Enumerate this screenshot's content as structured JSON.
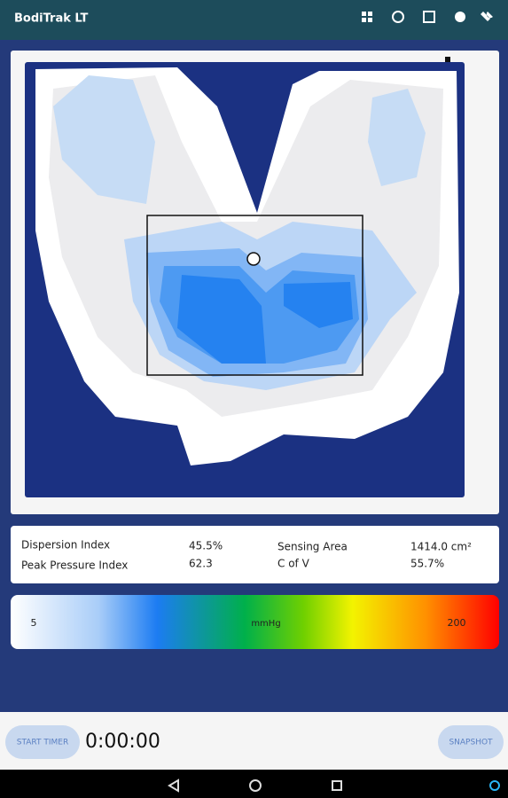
{
  "header": {
    "title": "BodiTrak LT"
  },
  "stats": {
    "dispersion_index": {
      "label": "Dispersion Index",
      "value": "45.5%"
    },
    "peak_pressure_index": {
      "label": "Peak Pressure Index",
      "value": "62.3"
    },
    "sensing_area": {
      "label": "Sensing Area",
      "value": "1414.0 cm²"
    },
    "c_of_v": {
      "label": "C of V",
      "value": "55.7%"
    }
  },
  "color_scale": {
    "min": 5,
    "unit": "mmHg",
    "max": 200
  },
  "footer": {
    "start_timer": "START TIMER",
    "timer": "0:00:00",
    "snapshot": "SNAPSHOT"
  }
}
